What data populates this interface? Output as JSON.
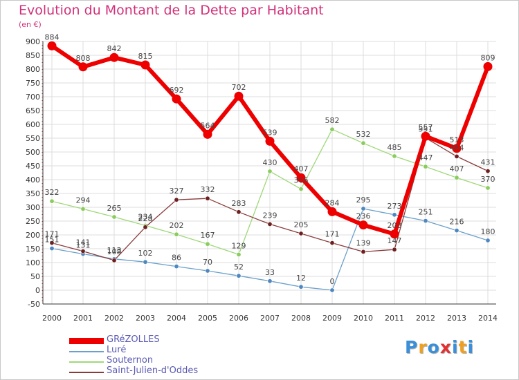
{
  "chart_data": {
    "type": "line",
    "title": "Evolution du Montant de la Dette par Habitant",
    "ylabel": "(en €)",
    "xlabel": "",
    "x": [
      "2000",
      "2001",
      "2002",
      "2003",
      "2004",
      "2005",
      "2006",
      "2007",
      "2008",
      "2009",
      "2010",
      "2011",
      "2012",
      "2013",
      "2014"
    ],
    "ylim": [
      -50,
      900
    ],
    "yticks": [
      -50,
      0,
      50,
      100,
      150,
      200,
      250,
      300,
      350,
      400,
      450,
      500,
      550,
      600,
      650,
      700,
      750,
      800,
      850,
      900
    ],
    "grid": true,
    "legend_position": "bottom-left",
    "series": [
      {
        "name": "Luré",
        "color": "#6aa0cc",
        "marker": "#4f87c0",
        "values": [
          151,
          131,
          113,
          102,
          86,
          70,
          52,
          33,
          12,
          0,
          295,
          273,
          251,
          216,
          180
        ],
        "labels": [
          "151",
          "131",
          "113",
          "102",
          "86",
          "70",
          "52",
          "33",
          "12",
          "0",
          "295",
          "273",
          "251",
          "216",
          "180"
        ]
      },
      {
        "name": "Souternon",
        "color": "#9ed878",
        "marker": "#8acd5e",
        "values": [
          322,
          294,
          265,
          234,
          202,
          167,
          129,
          430,
          366,
          582,
          532,
          485,
          447,
          407,
          370
        ],
        "labels": [
          "322",
          "294",
          "265",
          "234",
          "202",
          "167",
          "129",
          "430",
          "366",
          "582",
          "532",
          "485",
          "447",
          "407",
          "370"
        ]
      },
      {
        "name": "Saint-Julien-d'Oddes",
        "color": "#8a3a3a",
        "marker": "#6e2020",
        "values": [
          171,
          141,
          108,
          228,
          327,
          332,
          283,
          239,
          205,
          171,
          139,
          147,
          551,
          484,
          431
        ],
        "labels": [
          "171",
          "141",
          "108",
          "228",
          "327",
          "332",
          "283",
          "239",
          "205",
          "171",
          "139",
          "147",
          "551",
          "484",
          "431"
        ]
      },
      {
        "name": "GRéZOLLES",
        "color": "#ee0000",
        "marker": "#ee0000",
        "values": [
          884,
          808,
          842,
          815,
          692,
          564,
          702,
          539,
          407,
          284,
          236,
          203,
          557,
          513,
          809
        ],
        "labels": [
          "884",
          "808",
          "842",
          "815",
          "692",
          "564",
          "702",
          "539",
          "407",
          "284",
          "236",
          "203",
          "557",
          "513",
          "809"
        ]
      }
    ]
  },
  "brand": {
    "letters": [
      "P",
      "r",
      "o",
      "x",
      "i",
      "t",
      "i"
    ],
    "colors": [
      "#3a8fd8",
      "#f0a020",
      "#3a8fd8",
      "#e23030",
      "#3a8fd8",
      "#f0a020",
      "#3a8fd8"
    ]
  }
}
